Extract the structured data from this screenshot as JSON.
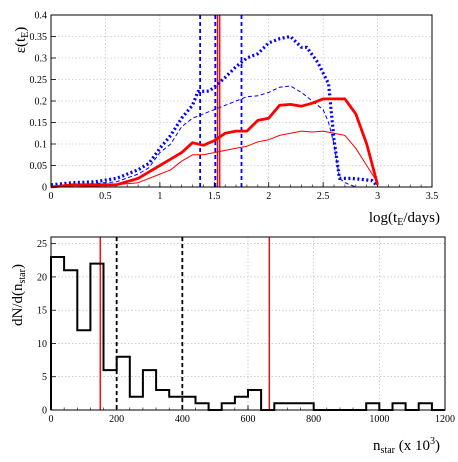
{
  "chart_data": [
    {
      "type": "line",
      "ylabel_main": "ε(t",
      "ylabel_sub": "E",
      "ylabel_end": ")",
      "xlabel_main": "log(t",
      "xlabel_sub": "E",
      "xlabel_end": "/days)",
      "xlim": [
        0,
        3.5
      ],
      "ylim": [
        0,
        0.4
      ],
      "grid": true,
      "xticks": [
        0,
        0.5,
        1,
        1.5,
        2,
        2.5,
        3,
        3.5
      ],
      "xtick_labels": [
        "0",
        "0.5",
        "1",
        "1.5",
        "2",
        "2.5",
        "3",
        "3.5"
      ],
      "yticks": [
        0,
        0.05,
        0.1,
        0.15,
        0.2,
        0.25,
        0.3,
        0.35,
        0.4
      ],
      "ytick_labels": [
        "0",
        "0.05",
        "0.1",
        "0.15",
        "0.2",
        "0.25",
        "0.3",
        "0.35",
        "0.4"
      ],
      "series": [
        {
          "color": "#0000ff",
          "style": "dotted-thick",
          "x": [
            0,
            0.2,
            0.4,
            0.6,
            0.8,
            0.9,
            1.0,
            1.1,
            1.2,
            1.3,
            1.35,
            1.45,
            1.5,
            1.6,
            1.7,
            1.8,
            1.9,
            2.0,
            2.1,
            2.2,
            2.3,
            2.35,
            2.45,
            2.55,
            2.6,
            2.65,
            2.75,
            2.85,
            2.95,
            3.0
          ],
          "y": [
            0.005,
            0.01,
            0.012,
            0.02,
            0.04,
            0.055,
            0.09,
            0.12,
            0.16,
            0.19,
            0.222,
            0.223,
            0.232,
            0.255,
            0.28,
            0.3,
            0.31,
            0.335,
            0.345,
            0.35,
            0.325,
            0.325,
            0.29,
            0.24,
            0.11,
            0.02,
            0.02,
            0.018,
            0.015,
            0.002
          ]
        },
        {
          "color": "#0000ff",
          "style": "dashed-thin",
          "x": [
            0,
            0.2,
            0.4,
            0.6,
            0.8,
            0.9,
            1.0,
            1.1,
            1.2,
            1.3,
            1.4,
            1.5,
            1.6,
            1.7,
            1.8,
            1.9,
            2.0,
            2.1,
            2.2,
            2.3,
            2.4,
            2.5,
            2.55,
            2.6,
            2.65,
            2.7,
            2.8
          ],
          "y": [
            0.0,
            0.005,
            0.008,
            0.012,
            0.03,
            0.045,
            0.08,
            0.1,
            0.14,
            0.16,
            0.17,
            0.18,
            0.19,
            0.2,
            0.21,
            0.212,
            0.22,
            0.232,
            0.235,
            0.22,
            0.2,
            0.18,
            0.15,
            0.1,
            0.02,
            0.01,
            0.0
          ]
        },
        {
          "color": "#ff0000",
          "style": "solid-thick",
          "x": [
            0,
            0.2,
            0.4,
            0.6,
            0.8,
            0.9,
            1.0,
            1.1,
            1.2,
            1.3,
            1.4,
            1.5,
            1.6,
            1.7,
            1.8,
            1.9,
            2.0,
            2.1,
            2.2,
            2.3,
            2.4,
            2.5,
            2.6,
            2.7,
            2.8,
            2.9,
            3.0
          ],
          "y": [
            0.0,
            0.005,
            0.005,
            0.005,
            0.02,
            0.035,
            0.05,
            0.065,
            0.08,
            0.103,
            0.097,
            0.108,
            0.125,
            0.13,
            0.13,
            0.155,
            0.16,
            0.19,
            0.192,
            0.188,
            0.195,
            0.205,
            0.205,
            0.205,
            0.17,
            0.1,
            0.005
          ]
        },
        {
          "color": "#ff0000",
          "style": "solid-thin",
          "x": [
            0,
            0.2,
            0.4,
            0.6,
            0.8,
            1.0,
            1.1,
            1.2,
            1.3,
            1.4,
            1.5,
            1.6,
            1.7,
            1.8,
            1.9,
            2.0,
            2.1,
            2.2,
            2.3,
            2.4,
            2.5,
            2.6,
            2.7,
            2.8,
            2.9,
            3.0
          ],
          "y": [
            0.0,
            0.0,
            0.002,
            0.005,
            0.01,
            0.03,
            0.04,
            0.06,
            0.075,
            0.075,
            0.08,
            0.085,
            0.09,
            0.095,
            0.105,
            0.11,
            0.12,
            0.125,
            0.13,
            0.128,
            0.13,
            0.125,
            0.12,
            0.09,
            0.05,
            0.01
          ]
        }
      ],
      "vlines": [
        {
          "x": 1.37,
          "color": "#0000ff",
          "style": "dashed"
        },
        {
          "x": 1.51,
          "color": "#0000ff",
          "style": "dashed"
        },
        {
          "x": 1.53,
          "color": "#ff0000",
          "style": "solid"
        },
        {
          "x": 1.55,
          "color": "#ff0000",
          "style": "solid"
        },
        {
          "x": 1.75,
          "color": "#0000ff",
          "style": "dashed"
        }
      ]
    },
    {
      "type": "histogram",
      "ylabel_main": "dN/d(n",
      "ylabel_sub": "star",
      "ylabel_end": ")",
      "xlabel_main": "n",
      "xlabel_sub": "star",
      "xlabel_end": " (x 10",
      "xlabel_sup": "3",
      "xlabel_close": ")",
      "xlim": [
        0,
        1200
      ],
      "ylim": [
        0,
        26
      ],
      "grid": true,
      "xticks": [
        0,
        200,
        400,
        600,
        800,
        1000,
        1200
      ],
      "xtick_labels": [
        "0",
        "200",
        "400",
        "600",
        "800",
        "1000",
        "1200"
      ],
      "yticks": [
        0,
        5,
        10,
        15,
        20,
        25
      ],
      "ytick_labels": [
        "0",
        "5",
        "10",
        "15",
        "20",
        "25"
      ],
      "bin_width": 40,
      "counts": [
        23,
        21,
        12,
        22,
        6,
        8,
        2,
        6,
        3,
        2,
        2,
        1,
        0,
        1,
        2,
        3,
        0,
        1,
        1,
        1,
        0,
        0,
        0,
        0,
        1,
        0,
        1,
        0,
        1,
        0
      ],
      "vlines": [
        {
          "x": 150,
          "color": "#ff0000",
          "style": "solid"
        },
        {
          "x": 200,
          "color": "#000000",
          "style": "dashed"
        },
        {
          "x": 400,
          "color": "#000000",
          "style": "dashed"
        },
        {
          "x": 665,
          "color": "#ff0000",
          "style": "solid"
        }
      ]
    }
  ]
}
